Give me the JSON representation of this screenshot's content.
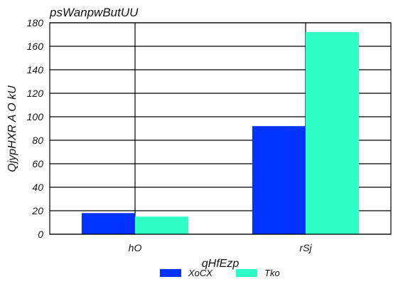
{
  "chart_data": {
    "type": "bar",
    "title": "psWanpwButUU",
    "xlabel": "qHfEzp",
    "ylabel": "QjypHXR A O kU",
    "categories": [
      "hO",
      "rSj"
    ],
    "series": [
      {
        "name": "XoCX",
        "values": [
          18,
          92
        ],
        "color": "#0033ff"
      },
      {
        "name": "Tko",
        "values": [
          15,
          172
        ],
        "color": "#2effc4"
      }
    ],
    "ylim": [
      0,
      180
    ],
    "yticks": [
      0,
      20,
      40,
      60,
      80,
      100,
      120,
      140,
      160,
      180
    ],
    "grid": true,
    "legend_position": "bottom-center"
  }
}
